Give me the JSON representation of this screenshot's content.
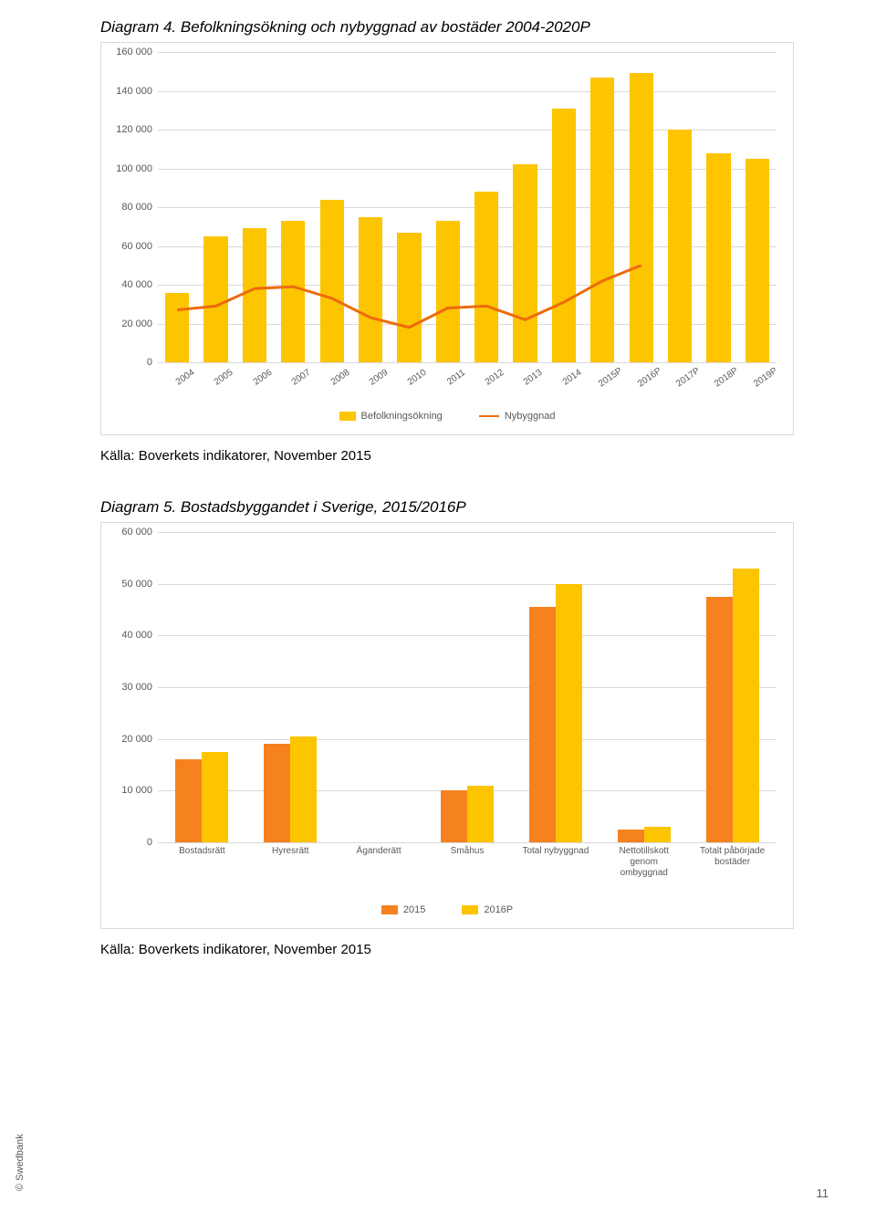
{
  "footer": {
    "copyright": "© Swedbank",
    "page": "11"
  },
  "chart1": {
    "type": "bar+line",
    "title": "Diagram 4. Befolkningsökning och nybyggnad av bostäder 2004-2020P",
    "source": "Källa: Boverkets indikatorer, November 2015",
    "y_max": 160000,
    "y_step": 20000,
    "y_ticks": [
      "0",
      "20 000",
      "40 000",
      "60 000",
      "80 000",
      "100 000",
      "120 000",
      "140 000",
      "160 000"
    ],
    "grid_color": "#d9d9d9",
    "bar_color": "#fdc400",
    "line_color": "#ed6b0b",
    "categories": [
      "2004",
      "2005",
      "2006",
      "2007",
      "2008",
      "2009",
      "2010",
      "2011",
      "2012",
      "2013",
      "2014",
      "2015P",
      "2016P",
      "2017P",
      "2018P",
      "2019P"
    ],
    "bar_values": [
      36000,
      65000,
      69000,
      73000,
      84000,
      75000,
      67000,
      73000,
      88000,
      102000,
      131000,
      147000,
      149000,
      120000,
      108000,
      105000
    ],
    "line_values": [
      27000,
      29000,
      38000,
      39000,
      33000,
      23000,
      18000,
      28000,
      29000,
      22000,
      31000,
      42000,
      50000,
      null,
      null,
      null
    ],
    "legend": {
      "bar": "Befolkningsökning",
      "line": "Nybyggnad"
    }
  },
  "chart2": {
    "type": "grouped-bar",
    "title": "Diagram 5. Bostadsbyggandet i Sverige, 2015/2016P",
    "source": "Källa: Boverkets indikatorer, November 2015",
    "y_max": 60000,
    "y_step": 10000,
    "y_ticks": [
      "0",
      "10 000",
      "20 000",
      "30 000",
      "40 000",
      "50 000",
      "60 000"
    ],
    "grid_color": "#d9d9d9",
    "series": [
      {
        "name": "2015",
        "color": "#f5821f"
      },
      {
        "name": "2016P",
        "color": "#fdc400"
      }
    ],
    "categories": [
      "Bostadsrätt",
      "Hyresrätt",
      "Äganderätt",
      "Småhus",
      "Total nybyggnad",
      "Nettotillskott\ngenom\nombyggnad",
      "Totalt påbörjade\nbostäder"
    ],
    "values_2015": [
      16000,
      19000,
      0,
      10000,
      45500,
      2500,
      47500
    ],
    "values_2016p": [
      17500,
      20500,
      0,
      11000,
      50000,
      3000,
      53000
    ]
  }
}
